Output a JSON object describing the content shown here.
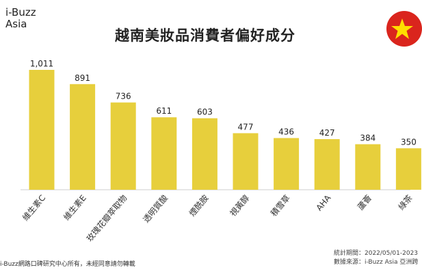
{
  "logo": {
    "line1": "i-Buzz",
    "line2": "Asia"
  },
  "flag_icon": "vietnam-flag-icon",
  "chart_data": {
    "type": "bar",
    "title": "越南美妝品消費者偏好成分",
    "categories": [
      "維生素C",
      "維生素E",
      "玫瑰花瓣萃取物",
      "透明質酸",
      "煙酰胺",
      "視黃醇",
      "積雪草",
      "AHA",
      "蘆薈",
      "綠茶"
    ],
    "values": [
      1011,
      891,
      736,
      611,
      603,
      477,
      436,
      427,
      384,
      350
    ],
    "value_labels": [
      "1,011",
      "891",
      "736",
      "611",
      "603",
      "477",
      "436",
      "427",
      "384",
      "350"
    ],
    "ylim": [
      0,
      1011
    ],
    "bar_color": "#e7cf3c",
    "grid": false
  },
  "footer": {
    "copyright": "i-Buzz網路口碑研究中心所有，未經同意請勿轉載",
    "period": "統計期間：2022/05/01-2023",
    "source": "數據來源：i-Buzz Asia 亞洲跨"
  }
}
